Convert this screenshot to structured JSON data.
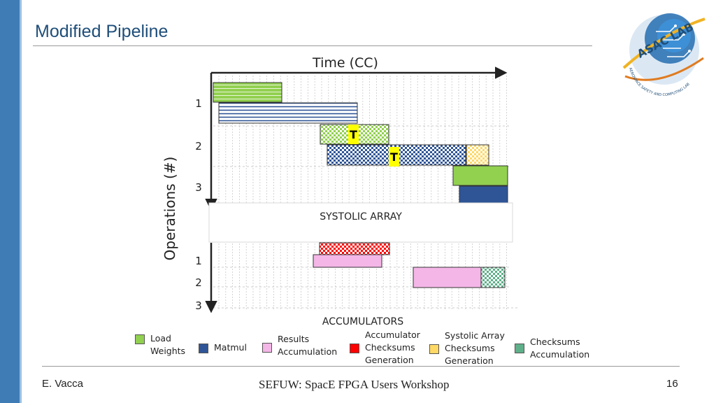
{
  "slide": {
    "title": "Modified Pipeline",
    "footer_author": "E. Vacca",
    "footer_center": "SEFUW: SpacE FPGA Users Workshop",
    "page_number": "16"
  },
  "logo": {
    "text": "ASAC LAB",
    "subtext": "AEROSPACE SAFETY AND COMPUTING LAB"
  },
  "diagram": {
    "time_axis_label": "Time (CC)",
    "operations_axis_label": "Operations (#)",
    "systolic_label": "SYSTOLIC ARRAY",
    "accumulators_label": "ACCUMULATORS",
    "systolic_rows": [
      "1",
      "2",
      "3"
    ],
    "accumulator_rows": [
      "1",
      "2",
      "3"
    ],
    "transfer_marker": "T"
  },
  "colors": {
    "load_weights": "#92d050",
    "matmul": "#2f5597",
    "results_accumulation": "#f4b6e7",
    "accumulator_checksums": "#ff0000",
    "systolic_checksums": "#ffd966",
    "checksums_accumulation": "#5fb08a",
    "marker": "#ffff00"
  },
  "legend": [
    {
      "label": "Load\nWeights",
      "color_key": "load_weights"
    },
    {
      "label": "Matmul",
      "color_key": "matmul"
    },
    {
      "label": "Results\nAccumulation",
      "color_key": "results_accumulation"
    },
    {
      "label": "Accumulator\nChecksums\nGeneration",
      "color_key": "accumulator_checksums"
    },
    {
      "label": "Systolic Array\nChecksums\nGeneration",
      "color_key": "systolic_checksums"
    },
    {
      "label": "Checksums\nAccumulation",
      "color_key": "checksums_accumulation"
    }
  ]
}
